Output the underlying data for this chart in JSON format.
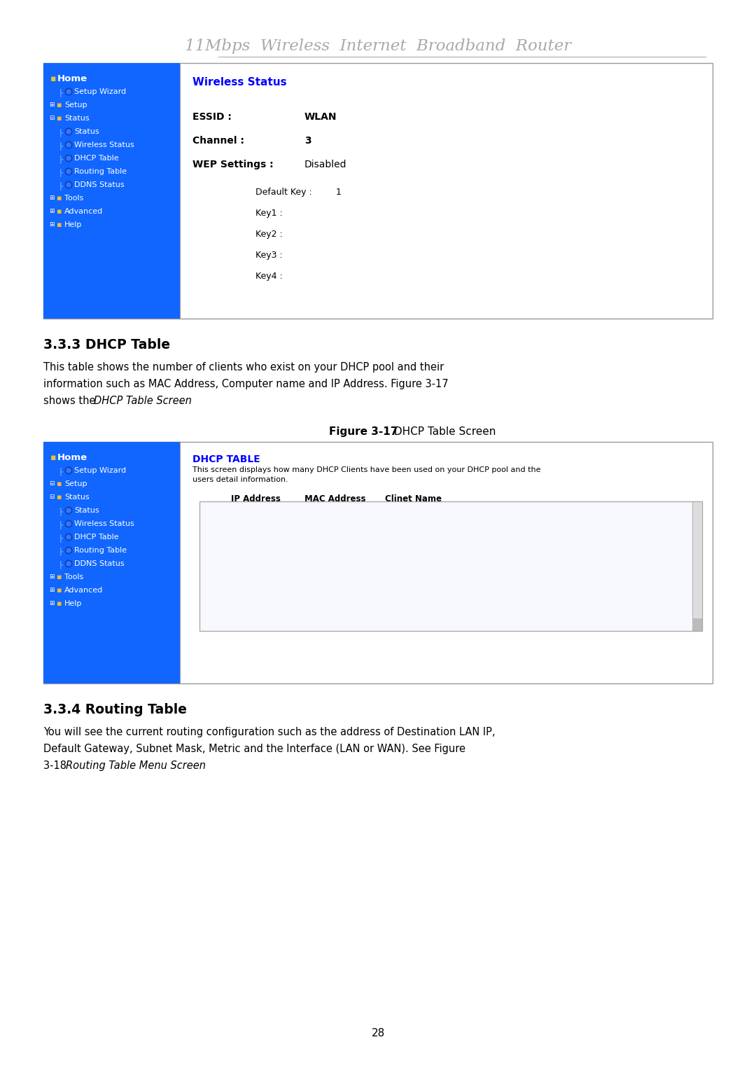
{
  "title": "11Mbps  Wireless  Internet  Broadband  Router",
  "title_color": "#aaaaaa",
  "bg_color": "#ffffff",
  "page_number": "28",
  "nav_blue": "#1166ff",
  "section1_heading": "3.3.3 DHCP Table",
  "section1_para1": "This table shows the number of clients who exist on your DHCP pool and their",
  "section1_para2": "information such as MAC Address, Computer name and IP Address. Figure 3-17",
  "section1_para3_pre": "shows the ",
  "section1_para3_italic": "DHCP Table Screen",
  "section1_para3_post": ".",
  "fig1_bold": "Figure 3-17",
  "fig1_normal": " DHCP Table Screen",
  "wireless_title": "Wireless Status",
  "dhcp_title_blue": "DHCP TABLE",
  "dhcp_desc1": "This screen displays how many DHCP Clients have been used on your DHCP pool and the",
  "dhcp_desc2": "users detail information.",
  "dhcp_cols": [
    "IP Address",
    "MAC Address",
    "Clinet Name"
  ],
  "section2_heading": "3.3.4 Routing Table",
  "section2_para1": "You will see the current routing configuration such as the address of Destination LAN IP,",
  "section2_para2": "Default Gateway, Subnet Mask, Metric and the Interface (LAN or WAN). See Figure",
  "section2_para3_pre": "3-18 ",
  "section2_para3_italic": "Routing Table Menu Screen",
  "nav1_items": [
    {
      "label": "Setup Wizard",
      "indent": 1,
      "type": "doc"
    },
    {
      "label": "Setup",
      "indent": 0,
      "type": "folder_plus"
    },
    {
      "label": "Status",
      "indent": 0,
      "type": "folder_minus"
    },
    {
      "label": "Status",
      "indent": 1,
      "type": "doc"
    },
    {
      "label": "Wireless Status",
      "indent": 1,
      "type": "doc"
    },
    {
      "label": "DHCP Table",
      "indent": 1,
      "type": "doc"
    },
    {
      "label": "Routing Table",
      "indent": 1,
      "type": "doc"
    },
    {
      "label": "DDNS Status",
      "indent": 1,
      "type": "doc"
    },
    {
      "label": "Tools",
      "indent": 0,
      "type": "folder_plus"
    },
    {
      "label": "Advanced",
      "indent": 0,
      "type": "folder_plus"
    },
    {
      "label": "Help",
      "indent": 0,
      "type": "folder_plus"
    }
  ],
  "nav2_items": [
    {
      "label": "Setup Wizard",
      "indent": 1,
      "type": "doc"
    },
    {
      "label": "Setup",
      "indent": 0,
      "type": "folder_minus"
    },
    {
      "label": "Status",
      "indent": 0,
      "type": "folder_minus"
    },
    {
      "label": "Status",
      "indent": 1,
      "type": "doc"
    },
    {
      "label": "Wireless Status",
      "indent": 1,
      "type": "doc"
    },
    {
      "label": "DHCP Table",
      "indent": 1,
      "type": "doc"
    },
    {
      "label": "Routing Table",
      "indent": 1,
      "type": "doc"
    },
    {
      "label": "DDNS Status",
      "indent": 1,
      "type": "doc"
    },
    {
      "label": "Tools",
      "indent": 0,
      "type": "folder_plus"
    },
    {
      "label": "Advanced",
      "indent": 0,
      "type": "folder_plus"
    },
    {
      "label": "Help",
      "indent": 0,
      "type": "folder_plus"
    }
  ]
}
